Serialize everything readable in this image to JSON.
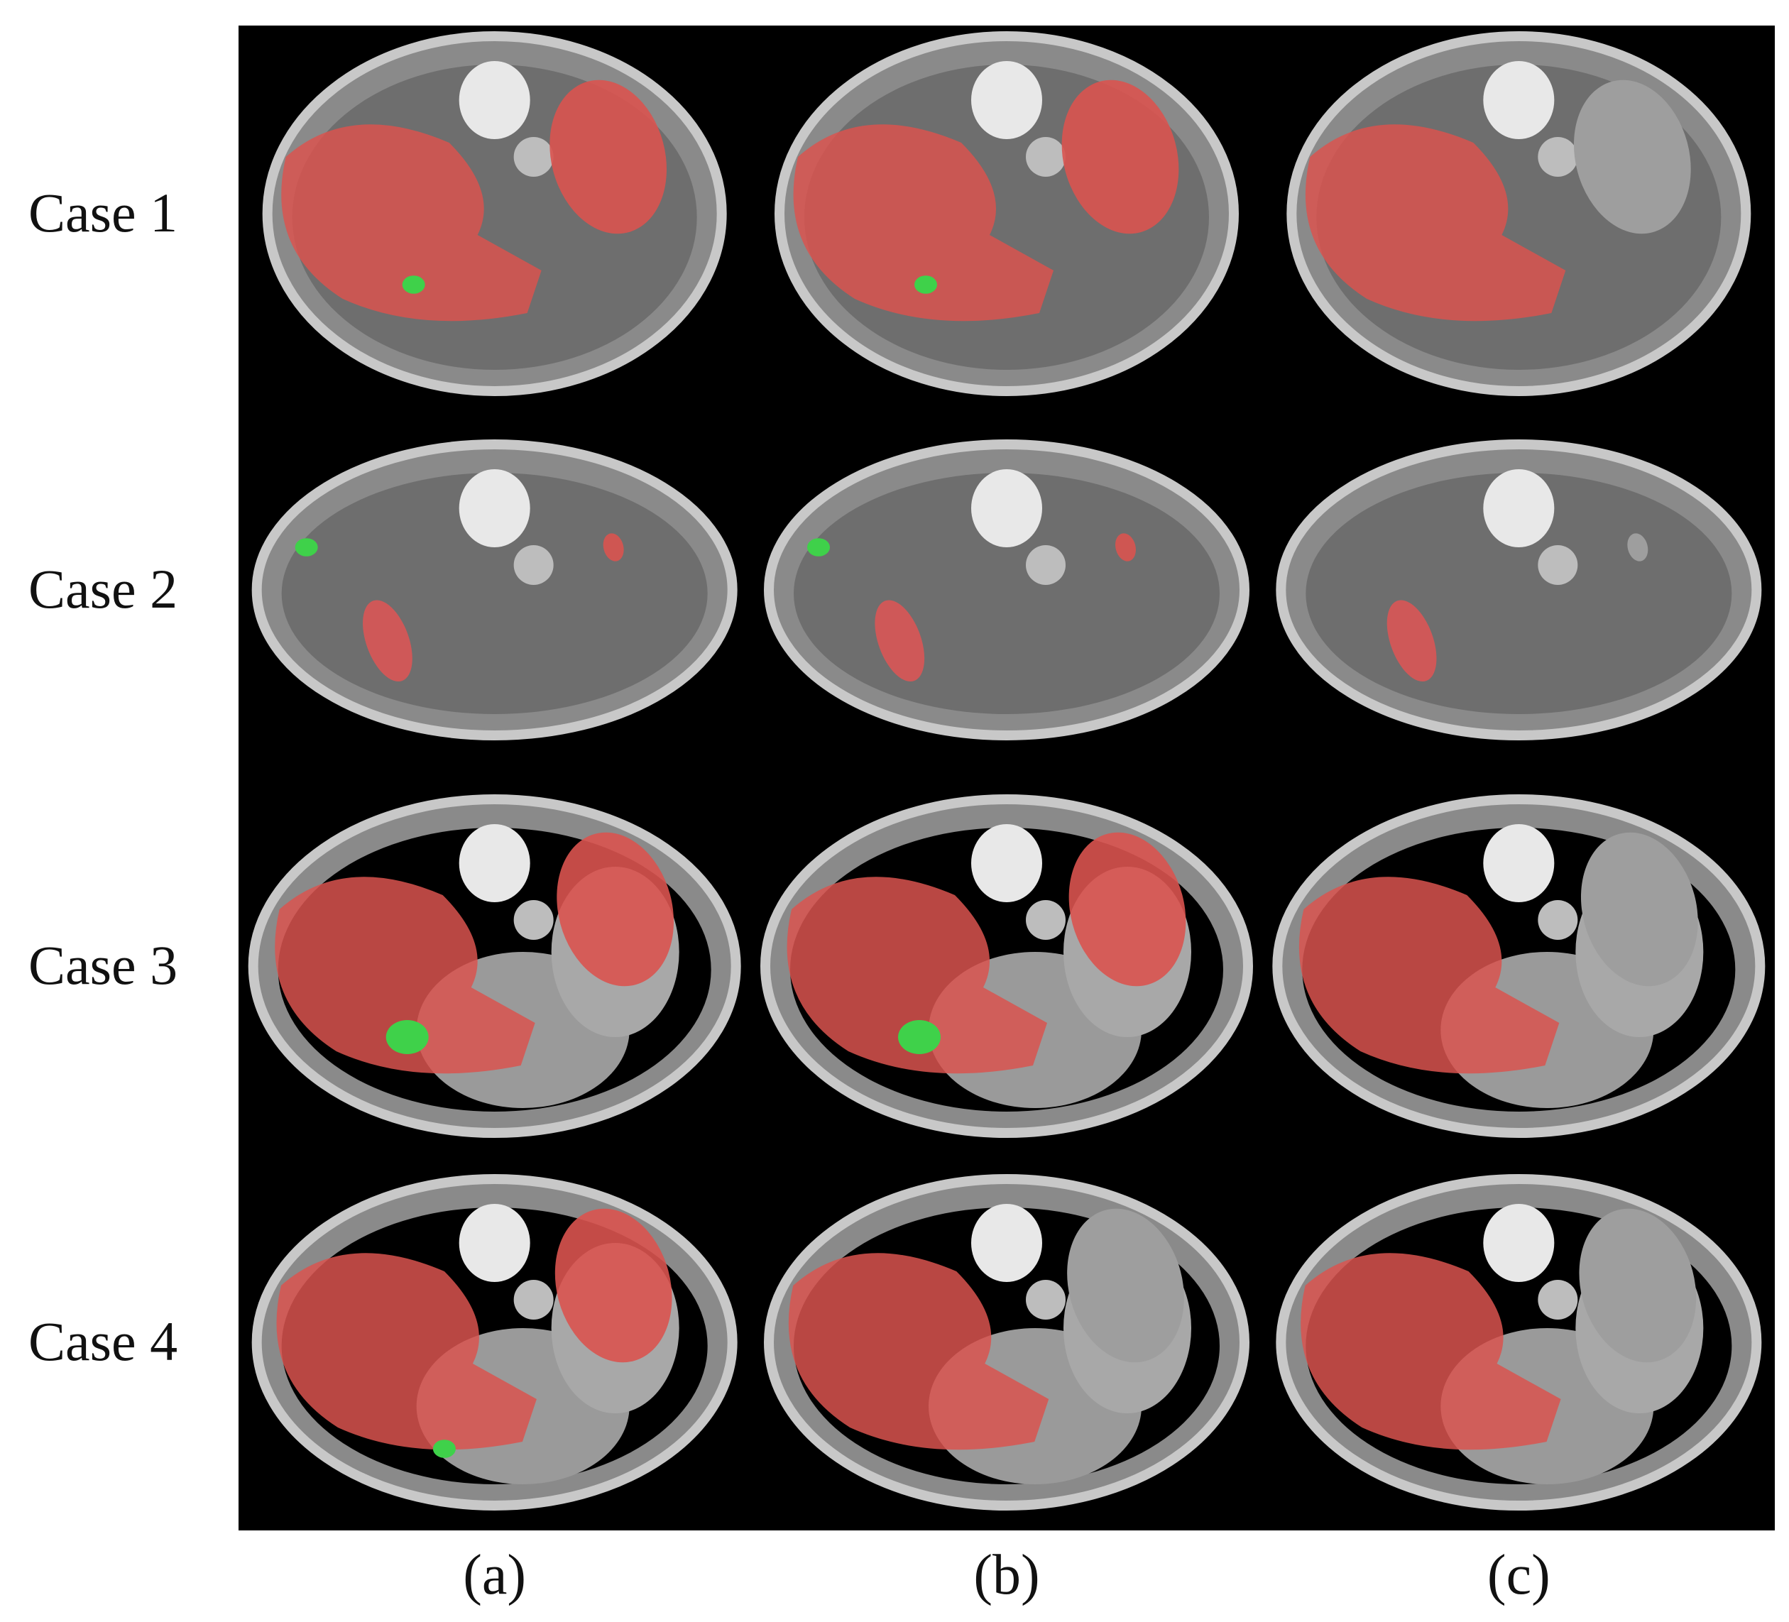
{
  "row_labels": [
    "Case 1",
    "Case 2",
    "Case 3",
    "Case 4"
  ],
  "column_labels": [
    "(a)",
    "(b)",
    "(c)"
  ]
}
